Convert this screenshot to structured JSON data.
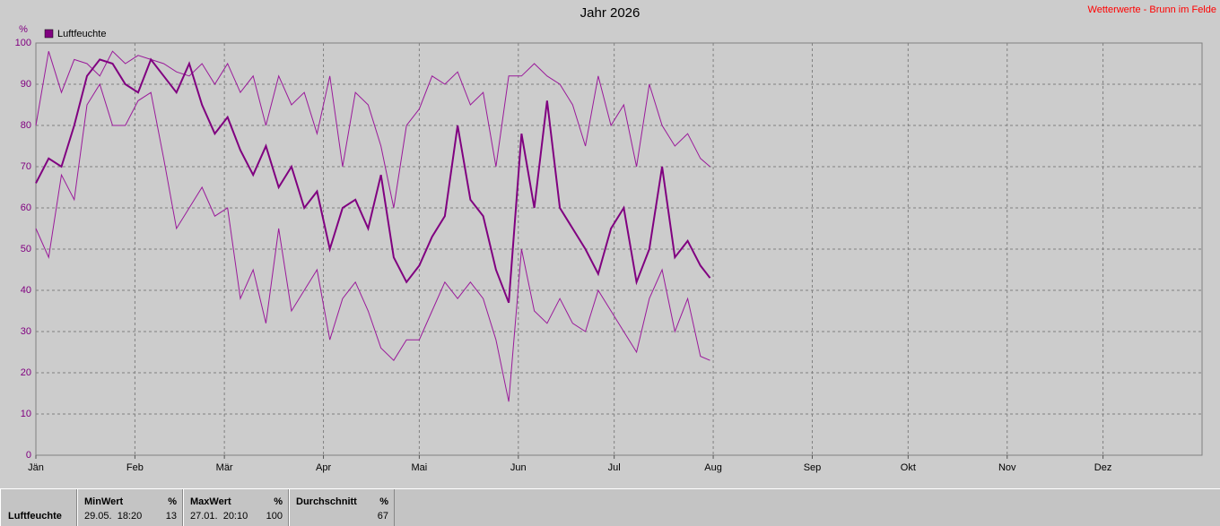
{
  "chart_data": {
    "type": "line",
    "title": "Jahr 2026",
    "subtitle": "Wetterwerte - Brunn im Felde",
    "y_label": "%",
    "x": [
      0,
      4,
      8,
      12,
      16,
      20,
      24,
      28,
      32,
      36,
      40,
      44,
      48,
      52,
      56,
      60,
      64,
      68,
      72,
      76,
      80,
      84,
      88,
      92,
      96,
      100,
      104,
      108,
      112,
      116,
      120,
      124,
      128,
      132,
      136,
      140,
      144,
      148,
      152,
      156,
      160,
      164,
      168,
      172,
      176,
      180,
      184,
      188,
      192,
      196,
      200,
      204,
      208,
      211
    ],
    "series": [
      {
        "name": "Luftfeuchte",
        "color": "#800080",
        "values": [
          66,
          72,
          70,
          80,
          92,
          96,
          95,
          90,
          88,
          96,
          92,
          88,
          95,
          85,
          78,
          82,
          74,
          68,
          75,
          65,
          70,
          60,
          64,
          50,
          60,
          62,
          55,
          68,
          48,
          42,
          46,
          53,
          58,
          80,
          62,
          58,
          45,
          37,
          78,
          60,
          86,
          60,
          55,
          50,
          44,
          55,
          60,
          42,
          50,
          70,
          48,
          52,
          46,
          43
        ]
      },
      {
        "color": "#9a1a9a",
        "values": [
          80,
          98,
          88,
          96,
          95,
          92,
          98,
          95,
          97,
          96,
          95,
          93,
          92,
          95,
          90,
          95,
          88,
          92,
          80,
          92,
          85,
          88,
          78,
          92,
          70,
          88,
          85,
          75,
          60,
          80,
          84,
          92,
          90,
          93,
          85,
          88,
          70,
          92,
          92,
          95,
          92,
          90,
          85,
          75,
          92,
          80,
          85,
          70,
          90,
          80,
          75,
          78,
          72,
          70
        ]
      },
      {
        "color": "#9a1a9a",
        "values": [
          55,
          48,
          68,
          62,
          85,
          90,
          80,
          80,
          86,
          88,
          72,
          55,
          60,
          65,
          58,
          60,
          38,
          45,
          32,
          55,
          35,
          40,
          45,
          28,
          38,
          42,
          35,
          26,
          23,
          28,
          28,
          35,
          42,
          38,
          42,
          38,
          28,
          13,
          50,
          35,
          32,
          38,
          32,
          30,
          40,
          35,
          30,
          25,
          38,
          45,
          30,
          38,
          24,
          23
        ]
      }
    ],
    "xlim": [
      0,
      365
    ],
    "xticks": [
      {
        "value": 0,
        "label": "Jän"
      },
      {
        "value": 31,
        "label": "Feb"
      },
      {
        "value": 59,
        "label": "Mär"
      },
      {
        "value": 90,
        "label": "Apr"
      },
      {
        "value": 120,
        "label": "Mai"
      },
      {
        "value": 151,
        "label": "Jun"
      },
      {
        "value": 181,
        "label": "Jul"
      },
      {
        "value": 212,
        "label": "Aug"
      },
      {
        "value": 243,
        "label": "Sep"
      },
      {
        "value": 273,
        "label": "Okt"
      },
      {
        "value": 304,
        "label": "Nov"
      },
      {
        "value": 334,
        "label": "Dez"
      }
    ],
    "ylim": [
      0,
      100
    ],
    "yticks": [
      0,
      10,
      20,
      30,
      40,
      50,
      60,
      70,
      80,
      90,
      100
    ],
    "grid": true
  },
  "summary": {
    "label": "Luftfeuchte",
    "columns": [
      {
        "header": "MinWert",
        "unit": "%",
        "time": "29.05.  18:20",
        "value": 13
      },
      {
        "header": "MaxWert",
        "unit": "%",
        "time": "27.01.  20:10",
        "value": 100
      },
      {
        "header": "Durchschnitt",
        "unit": "%",
        "value": 67
      }
    ]
  }
}
